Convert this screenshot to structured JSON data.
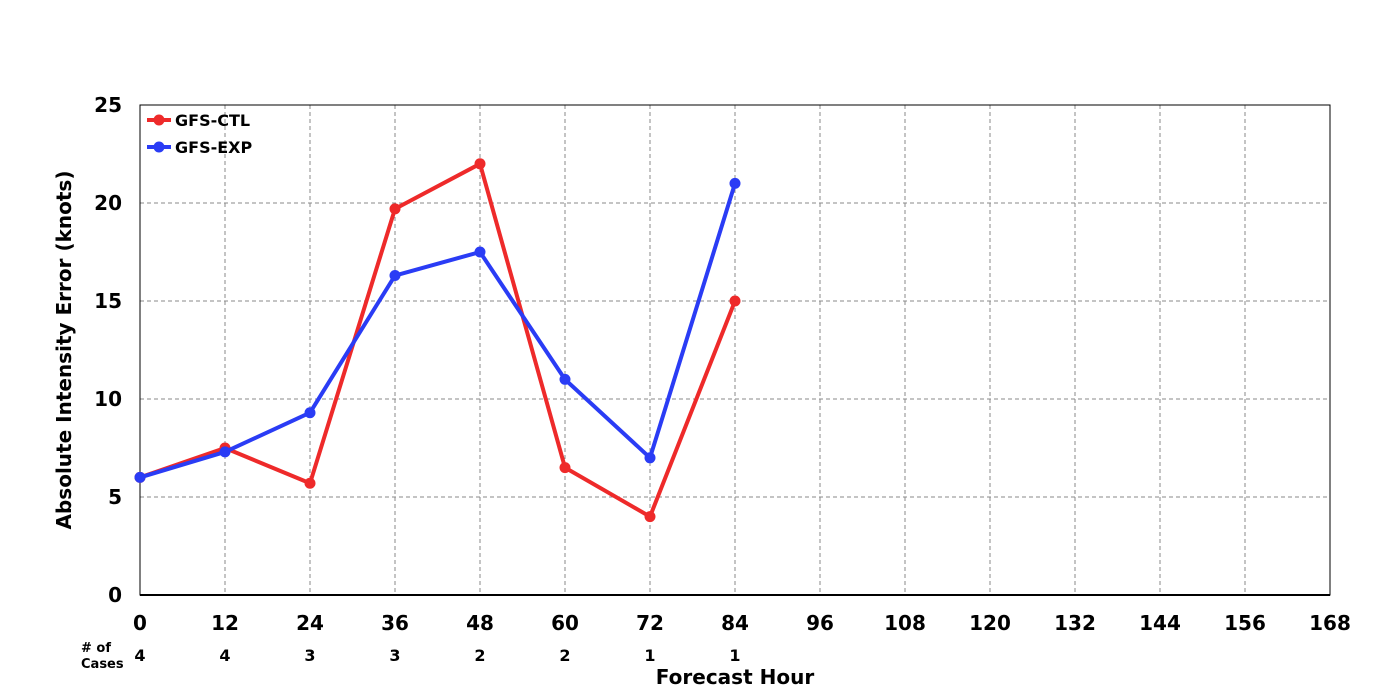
{
  "chart_data": {
    "type": "line",
    "xlabel": "Forecast Hour",
    "ylabel": "Absolute Intensity Error (knots)",
    "xlim": [
      0,
      168
    ],
    "ylim": [
      0,
      25
    ],
    "x_ticks": [
      0,
      12,
      24,
      36,
      48,
      60,
      72,
      84,
      96,
      108,
      120,
      132,
      144,
      156,
      168
    ],
    "y_ticks": [
      0,
      5,
      10,
      15,
      20,
      25
    ],
    "grid": true,
    "legend_position": "top-left",
    "series": [
      {
        "name": "GFS-CTL",
        "color": "#ee2a2a",
        "x": [
          0,
          12,
          24,
          36,
          48,
          60,
          72,
          84
        ],
        "y": [
          6.0,
          7.5,
          5.7,
          19.7,
          22.0,
          6.5,
          4.0,
          15.0
        ]
      },
      {
        "name": "GFS-EXP",
        "color": "#2a3cf5",
        "x": [
          0,
          12,
          24,
          36,
          48,
          60,
          72,
          84
        ],
        "y": [
          6.0,
          7.3,
          9.3,
          16.3,
          17.5,
          11.0,
          7.0,
          21.0
        ]
      }
    ],
    "cases": {
      "title_line1": "# of",
      "title_line2": "Cases",
      "x": [
        0,
        12,
        24,
        36,
        48,
        60,
        72,
        84
      ],
      "values": [
        "4",
        "4",
        "3",
        "3",
        "2",
        "2",
        "1",
        "1"
      ]
    }
  }
}
